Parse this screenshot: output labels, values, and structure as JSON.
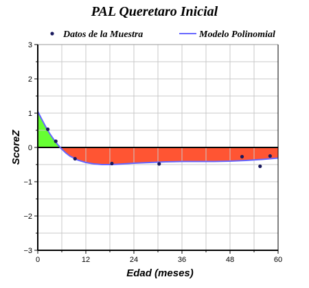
{
  "chart_data": {
    "type": "line",
    "title": "PAL Queretaro Inicial",
    "xlabel": "Edad (meses)",
    "ylabel": "ScoreZ",
    "xlim": [
      0,
      60
    ],
    "ylim": [
      -3,
      3
    ],
    "x_ticks": [
      "0",
      "12",
      "24",
      "36",
      "48",
      "60"
    ],
    "y_ticks": [
      "3",
      "2",
      "1",
      "0",
      "−1",
      "−2",
      "−3"
    ],
    "grid": true,
    "legend_position": "top",
    "series": [
      {
        "name": "Datos de la Muestra",
        "kind": "scatter",
        "color": "#1a1a5e",
        "x": [
          2.5,
          4.5,
          9.3,
          18.5,
          30.3,
          51.0,
          55.5,
          58.0
        ],
        "y": [
          0.53,
          0.18,
          -0.33,
          -0.47,
          -0.48,
          -0.27,
          -0.55,
          -0.25
        ]
      },
      {
        "name": "Modelo Polinomial",
        "kind": "line",
        "color": "#6666ff",
        "x": [
          0,
          1,
          2,
          3,
          4,
          5,
          6,
          7,
          8,
          10,
          12,
          14,
          16,
          18,
          20,
          24,
          28,
          32,
          36,
          40,
          44,
          48,
          52,
          56,
          60
        ],
        "y": [
          1.05,
          0.82,
          0.6,
          0.4,
          0.23,
          0.08,
          -0.05,
          -0.16,
          -0.25,
          -0.37,
          -0.44,
          -0.48,
          -0.5,
          -0.5,
          -0.49,
          -0.46,
          -0.44,
          -0.42,
          -0.41,
          -0.41,
          -0.41,
          -0.4,
          -0.38,
          -0.35,
          -0.31
        ]
      }
    ],
    "fill_above_color": "#66ff33",
    "fill_below_color": "#ff5533"
  }
}
